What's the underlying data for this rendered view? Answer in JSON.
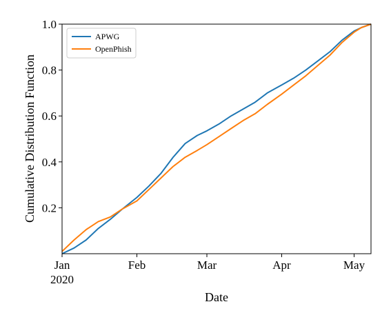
{
  "chart_data": {
    "type": "line",
    "title": "",
    "xlabel": "Date",
    "ylabel": "Cumulative Distribution Function",
    "x_tick_labels": [
      {
        "value": "2020-01-01",
        "line1": "Jan",
        "line2": "2020"
      },
      {
        "value": "2020-02-01",
        "line1": "Feb",
        "line2": ""
      },
      {
        "value": "2020-03-01",
        "line1": "Mar",
        "line2": ""
      },
      {
        "value": "2020-04-01",
        "line1": "Apr",
        "line2": ""
      },
      {
        "value": "2020-05-01",
        "line1": "May",
        "line2": ""
      }
    ],
    "y_tick_labels": [
      "0.2",
      "0.4",
      "0.6",
      "0.8",
      "1.0"
    ],
    "xlim": [
      "2020-01-01",
      "2020-05-08"
    ],
    "ylim": [
      0.0,
      1.0
    ],
    "grid": false,
    "legend_position": "top-left",
    "x": [
      "2020-01-01",
      "2020-01-06",
      "2020-01-11",
      "2020-01-16",
      "2020-01-21",
      "2020-01-26",
      "2020-02-01",
      "2020-02-06",
      "2020-02-11",
      "2020-02-16",
      "2020-02-21",
      "2020-02-26",
      "2020-03-01",
      "2020-03-06",
      "2020-03-11",
      "2020-03-16",
      "2020-03-21",
      "2020-03-26",
      "2020-04-01",
      "2020-04-06",
      "2020-04-11",
      "2020-04-16",
      "2020-04-21",
      "2020-04-26",
      "2020-05-01",
      "2020-05-04",
      "2020-05-08"
    ],
    "series": [
      {
        "name": "APWG",
        "color": "#1f77b4",
        "values": [
          0.0,
          0.025,
          0.06,
          0.11,
          0.15,
          0.195,
          0.245,
          0.295,
          0.35,
          0.42,
          0.48,
          0.515,
          0.535,
          0.565,
          0.6,
          0.63,
          0.66,
          0.7,
          0.735,
          0.765,
          0.8,
          0.84,
          0.88,
          0.93,
          0.97,
          0.985,
          1.0
        ]
      },
      {
        "name": "OpenPhish",
        "color": "#ff7f0e",
        "values": [
          0.01,
          0.06,
          0.105,
          0.14,
          0.16,
          0.195,
          0.23,
          0.28,
          0.33,
          0.38,
          0.42,
          0.45,
          0.475,
          0.51,
          0.545,
          0.58,
          0.61,
          0.65,
          0.695,
          0.735,
          0.775,
          0.82,
          0.865,
          0.92,
          0.965,
          0.985,
          1.0
        ]
      }
    ]
  }
}
